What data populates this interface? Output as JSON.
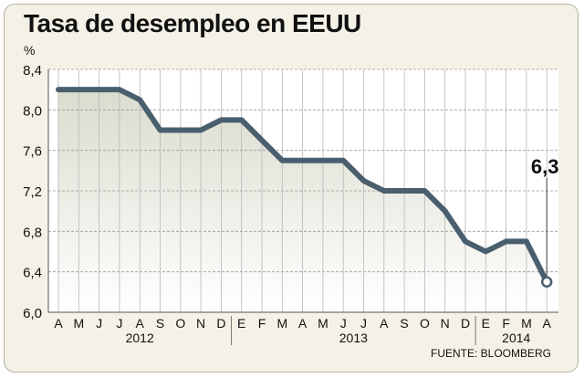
{
  "title": "Tasa de desempleo en EEUU",
  "source": "FUENTE: BLOOMBERG",
  "colors": {
    "line": "#4a5f6e",
    "grid": "#9a9a9a",
    "background": "#f4f1e6",
    "area_top": "#d9dccd",
    "area_bottom": "#ffffff"
  },
  "chart_data": {
    "type": "line",
    "title": "Tasa de desempleo en EEUU",
    "xlabel": "",
    "ylabel": "%",
    "ylim": [
      6.0,
      8.4
    ],
    "yticks": [
      "6,0",
      "6,4",
      "6,8",
      "7,2",
      "7,6",
      "8,0",
      "8,4"
    ],
    "ytick_values": [
      6.0,
      6.4,
      6.8,
      7.2,
      7.6,
      8.0,
      8.4
    ],
    "categories": [
      "A",
      "M",
      "J",
      "J",
      "A",
      "S",
      "O",
      "N",
      "D",
      "E",
      "F",
      "M",
      "A",
      "M",
      "J",
      "J",
      "A",
      "S",
      "O",
      "N",
      "D",
      "E",
      "F",
      "M",
      "A"
    ],
    "years": [
      {
        "label": "2012",
        "start": 0,
        "end": 8
      },
      {
        "label": "2013",
        "start": 9,
        "end": 20
      },
      {
        "label": "2014",
        "start": 21,
        "end": 24
      }
    ],
    "series": [
      {
        "values": [
          8.2,
          8.2,
          8.2,
          8.2,
          8.1,
          7.8,
          7.8,
          7.8,
          7.9,
          7.9,
          7.7,
          7.5,
          7.5,
          7.5,
          7.5,
          7.3,
          7.2,
          7.2,
          7.2,
          7.0,
          6.7,
          6.6,
          6.7,
          6.7,
          6.3
        ]
      }
    ],
    "annotation": {
      "text": "6,3",
      "index": 24
    },
    "grid": true,
    "area_fill": true
  }
}
